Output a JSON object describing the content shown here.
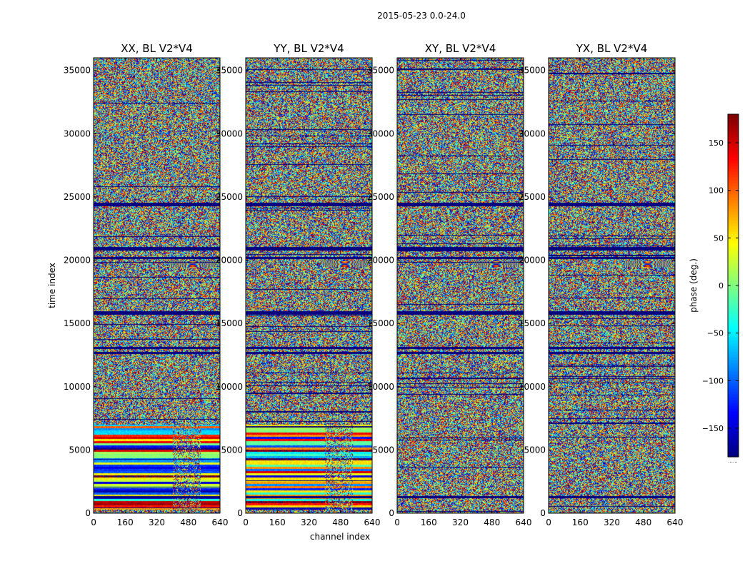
{
  "chart_data": {
    "type": "heatmap",
    "suptitle": "2015-05-23 0.0-24.0",
    "xlabel": "channel index",
    "ylabel": "time index",
    "xlim": [
      0,
      640
    ],
    "ylim": [
      0,
      36000
    ],
    "xticks": [
      0,
      160,
      320,
      480,
      640
    ],
    "yticks": [
      0,
      5000,
      10000,
      15000,
      20000,
      25000,
      30000,
      35000
    ],
    "panels": [
      {
        "title": "XX, BL V2*V4",
        "key": "XX"
      },
      {
        "title": "YY, BL V2*V4",
        "key": "YY"
      },
      {
        "title": "XY, BL V2*V4",
        "key": "XY"
      },
      {
        "title": "YX, BL V2*V4",
        "key": "YX"
      }
    ],
    "colorbar": {
      "label": "phase (deg.)",
      "range": [
        -180,
        180
      ],
      "ticks": [
        -150,
        -100,
        -50,
        0,
        50,
        100,
        150
      ],
      "colormap": "jet",
      "extend_marker": "......"
    },
    "flagged_time_ranges": [
      [
        24300,
        24600
      ],
      [
        20800,
        21100
      ],
      [
        20100,
        20300
      ],
      [
        15700,
        16000
      ],
      [
        13000,
        13200
      ],
      [
        12600,
        12800
      ],
      [
        1200,
        1400
      ]
    ],
    "fringe_time_range": [
      19500,
      20000
    ],
    "fringe_channel_range": [
      380,
      620
    ]
  }
}
